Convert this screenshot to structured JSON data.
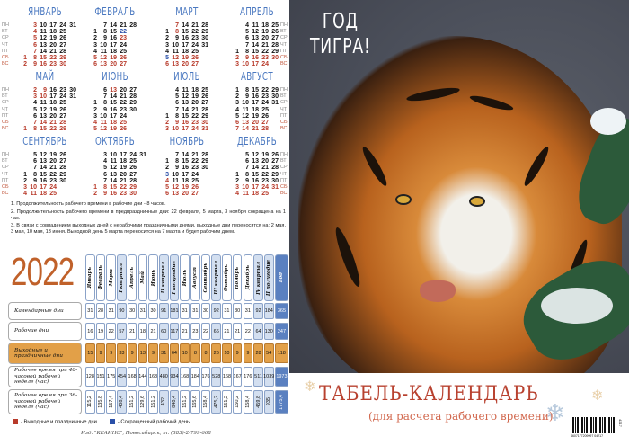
{
  "weekdays": [
    "ПН",
    "ВТ",
    "СР",
    "ЧТ",
    "ПТ",
    "СБ",
    "ВС"
  ],
  "months": [
    {
      "name": "ЯНВАРЬ",
      "rows": [
        [
          "",
          3,
          10,
          17,
          24,
          31
        ],
        [
          "",
          4,
          11,
          18,
          25,
          ""
        ],
        [
          "",
          5,
          12,
          19,
          26,
          ""
        ],
        [
          "",
          6,
          13,
          20,
          27,
          ""
        ],
        [
          "",
          7,
          14,
          21,
          28,
          ""
        ],
        [
          1,
          8,
          15,
          22,
          29,
          ""
        ],
        [
          2,
          9,
          16,
          23,
          30,
          ""
        ]
      ],
      "red": [
        1,
        2,
        3,
        4,
        5,
        6,
        7,
        8,
        9,
        15,
        16,
        22,
        23,
        29,
        30
      ],
      "short": []
    },
    {
      "name": "ФЕВРАЛЬ",
      "rows": [
        [
          "",
          7,
          14,
          21,
          28
        ],
        [
          1,
          8,
          15,
          22,
          ""
        ],
        [
          2,
          9,
          16,
          23,
          ""
        ],
        [
          3,
          10,
          17,
          24,
          ""
        ],
        [
          4,
          11,
          18,
          25,
          ""
        ],
        [
          5,
          12,
          19,
          26,
          ""
        ],
        [
          6,
          13,
          20,
          27,
          ""
        ]
      ],
      "red": [
        5,
        6,
        12,
        13,
        19,
        20,
        23,
        26,
        27
      ],
      "short": [
        22
      ]
    },
    {
      "name": "МАРТ",
      "rows": [
        [
          "",
          7,
          14,
          21,
          28
        ],
        [
          1,
          8,
          15,
          22,
          29
        ],
        [
          2,
          9,
          16,
          23,
          30
        ],
        [
          3,
          10,
          17,
          24,
          31
        ],
        [
          4,
          11,
          18,
          25,
          ""
        ],
        [
          5,
          12,
          19,
          26,
          ""
        ],
        [
          6,
          13,
          20,
          27,
          ""
        ]
      ],
      "red": [
        6,
        7,
        8,
        12,
        13,
        19,
        20,
        26,
        27
      ],
      "short": [
        5
      ]
    },
    {
      "name": "АПРЕЛЬ",
      "rows": [
        [
          "",
          4,
          11,
          18,
          25
        ],
        [
          "",
          5,
          12,
          19,
          26
        ],
        [
          "",
          6,
          13,
          20,
          27
        ],
        [
          "",
          7,
          14,
          21,
          28
        ],
        [
          1,
          8,
          15,
          22,
          29
        ],
        [
          2,
          9,
          16,
          23,
          30
        ],
        [
          3,
          10,
          17,
          24,
          ""
        ]
      ],
      "red": [
        2,
        3,
        9,
        10,
        16,
        17,
        23,
        24,
        30
      ],
      "short": []
    },
    {
      "name": "МАЙ",
      "rows": [
        [
          "",
          2,
          9,
          16,
          23,
          30
        ],
        [
          "",
          3,
          10,
          17,
          24,
          31
        ],
        [
          "",
          4,
          11,
          18,
          25,
          ""
        ],
        [
          "",
          5,
          12,
          19,
          26,
          ""
        ],
        [
          "",
          6,
          13,
          20,
          27,
          ""
        ],
        [
          "",
          7,
          14,
          21,
          28,
          ""
        ],
        [
          1,
          8,
          15,
          22,
          29,
          ""
        ]
      ],
      "red": [
        1,
        2,
        3,
        7,
        8,
        9,
        10,
        14,
        15,
        21,
        22,
        28,
        29
      ],
      "short": []
    },
    {
      "name": "ИЮНЬ",
      "rows": [
        [
          "",
          6,
          13,
          20,
          27
        ],
        [
          "",
          7,
          14,
          21,
          28
        ],
        [
          1,
          8,
          15,
          22,
          29
        ],
        [
          2,
          9,
          16,
          23,
          30
        ],
        [
          3,
          10,
          17,
          24,
          ""
        ],
        [
          4,
          11,
          18,
          25,
          ""
        ],
        [
          5,
          12,
          19,
          26,
          ""
        ]
      ],
      "red": [
        4,
        5,
        11,
        12,
        13,
        18,
        19,
        25,
        26
      ],
      "short": []
    },
    {
      "name": "ИЮЛЬ",
      "rows": [
        [
          "",
          4,
          11,
          18,
          25
        ],
        [
          "",
          5,
          12,
          19,
          26
        ],
        [
          "",
          6,
          13,
          20,
          27
        ],
        [
          "",
          7,
          14,
          21,
          28
        ],
        [
          1,
          8,
          15,
          22,
          29
        ],
        [
          2,
          9,
          16,
          23,
          30
        ],
        [
          3,
          10,
          17,
          24,
          31
        ]
      ],
      "red": [
        2,
        3,
        9,
        10,
        16,
        17,
        23,
        24,
        30,
        31
      ],
      "short": []
    },
    {
      "name": "АВГУСТ",
      "rows": [
        [
          1,
          8,
          15,
          22,
          29
        ],
        [
          2,
          9,
          16,
          23,
          30
        ],
        [
          3,
          10,
          17,
          24,
          31
        ],
        [
          4,
          11,
          18,
          25,
          ""
        ],
        [
          5,
          12,
          19,
          26,
          ""
        ],
        [
          6,
          13,
          20,
          27,
          ""
        ],
        [
          7,
          14,
          21,
          28,
          ""
        ]
      ],
      "red": [
        6,
        7,
        13,
        14,
        20,
        21,
        27,
        28
      ],
      "short": []
    },
    {
      "name": "СЕНТЯБРЬ",
      "rows": [
        [
          "",
          5,
          12,
          19,
          26
        ],
        [
          "",
          6,
          13,
          20,
          27
        ],
        [
          "",
          7,
          14,
          21,
          28
        ],
        [
          1,
          8,
          15,
          22,
          29
        ],
        [
          2,
          9,
          16,
          23,
          30
        ],
        [
          3,
          10,
          17,
          24,
          ""
        ],
        [
          4,
          11,
          18,
          25,
          ""
        ]
      ],
      "red": [
        3,
        4,
        10,
        11,
        17,
        18,
        24,
        25
      ],
      "short": []
    },
    {
      "name": "ОКТЯБРЬ",
      "rows": [
        [
          "",
          3,
          10,
          17,
          24,
          31
        ],
        [
          "",
          4,
          11,
          18,
          25,
          ""
        ],
        [
          "",
          5,
          12,
          19,
          26,
          ""
        ],
        [
          "",
          6,
          13,
          20,
          27,
          ""
        ],
        [
          "",
          7,
          14,
          21,
          28,
          ""
        ],
        [
          1,
          8,
          15,
          22,
          29,
          ""
        ],
        [
          2,
          9,
          16,
          23,
          30,
          ""
        ]
      ],
      "red": [
        1,
        2,
        8,
        9,
        15,
        16,
        22,
        23,
        29,
        30
      ],
      "short": []
    },
    {
      "name": "НОЯБРЬ",
      "rows": [
        [
          "",
          7,
          14,
          21,
          28
        ],
        [
          1,
          8,
          15,
          22,
          29
        ],
        [
          2,
          9,
          16,
          23,
          30
        ],
        [
          3,
          10,
          17,
          24,
          ""
        ],
        [
          4,
          11,
          18,
          25,
          ""
        ],
        [
          5,
          12,
          19,
          26,
          ""
        ],
        [
          6,
          13,
          20,
          27,
          ""
        ]
      ],
      "red": [
        4,
        5,
        6,
        12,
        13,
        19,
        20,
        26,
        27
      ],
      "short": [
        3
      ]
    },
    {
      "name": "ДЕКАБРЬ",
      "rows": [
        [
          "",
          5,
          12,
          19,
          26
        ],
        [
          "",
          6,
          13,
          20,
          27
        ],
        [
          "",
          7,
          14,
          21,
          28
        ],
        [
          1,
          8,
          15,
          22,
          29
        ],
        [
          2,
          9,
          16,
          23,
          30
        ],
        [
          3,
          10,
          17,
          24,
          31
        ],
        [
          4,
          11,
          18,
          25,
          ""
        ]
      ],
      "red": [
        3,
        4,
        10,
        11,
        17,
        18,
        24,
        25,
        31
      ],
      "short": []
    }
  ],
  "notes": [
    "1. Продолжительность рабочего времени в рабочие дни - 8 часов.",
    "2. Продолжительность рабочего времени в предпраздничные дни: 22 февраля, 5 марта, 3 ноября сокращена на 1 час.",
    "3. В связи с совпадением выходных дней с нерабочими праздничными днями, выходные дни переносятся на: 2 мая, 3 мая, 10 мая, 13 июня. Выходной день 5 марта переносится на 7 марта и будет рабочим днем."
  ],
  "table": {
    "year": "2022",
    "columns": [
      {
        "label": "Январь",
        "kind": "m"
      },
      {
        "label": "Февраль",
        "kind": "m"
      },
      {
        "label": "Март",
        "kind": "m"
      },
      {
        "label": "I квартал",
        "kind": "q"
      },
      {
        "label": "Апрель",
        "kind": "m"
      },
      {
        "label": "Май",
        "kind": "m"
      },
      {
        "label": "Июнь",
        "kind": "m"
      },
      {
        "label": "II квартал",
        "kind": "q"
      },
      {
        "label": "I полугодие",
        "kind": "q"
      },
      {
        "label": "Июль",
        "kind": "m"
      },
      {
        "label": "Август",
        "kind": "m"
      },
      {
        "label": "Сентябрь",
        "kind": "m"
      },
      {
        "label": "III квартал",
        "kind": "q"
      },
      {
        "label": "Октябрь",
        "kind": "m"
      },
      {
        "label": "Ноябрь",
        "kind": "m"
      },
      {
        "label": "Декабрь",
        "kind": "m"
      },
      {
        "label": "IV квартал",
        "kind": "q"
      },
      {
        "label": "II полугодие",
        "kind": "q"
      },
      {
        "label": "Год",
        "kind": "y"
      }
    ],
    "rows": [
      {
        "label": "Календарные дни",
        "values": [
          "31",
          "28",
          "31",
          "90",
          "30",
          "31",
          "30",
          "91",
          "181",
          "31",
          "31",
          "30",
          "92",
          "31",
          "30",
          "31",
          "92",
          "184",
          "365"
        ]
      },
      {
        "label": "Рабочие дни",
        "values": [
          "16",
          "19",
          "22",
          "57",
          "21",
          "18",
          "21",
          "60",
          "117",
          "21",
          "23",
          "22",
          "66",
          "21",
          "21",
          "22",
          "64",
          "130",
          "247"
        ]
      },
      {
        "label": "Выходные и праздничные дни",
        "values": [
          "15",
          "9",
          "9",
          "33",
          "9",
          "13",
          "9",
          "31",
          "64",
          "10",
          "8",
          "8",
          "26",
          "10",
          "9",
          "9",
          "28",
          "54",
          "118"
        ]
      },
      {
        "label": "Рабочее время при 40-часовой рабочей неделе (час)",
        "values": [
          "128",
          "151",
          "175",
          "454",
          "168",
          "144",
          "168",
          "480",
          "934",
          "168",
          "184",
          "176",
          "528",
          "168",
          "167",
          "176",
          "511",
          "1039",
          "1973"
        ]
      },
      {
        "label": "Рабочее время при 36-часовой рабочей неделе (час)",
        "values": [
          "115,2",
          "135,8",
          "157,4",
          "408,4",
          "151,2",
          "129,6",
          "151,2",
          "432",
          "840,4",
          "151,2",
          "165,6",
          "158,4",
          "475,2",
          "151,2",
          "150,2",
          "158,4",
          "459,8",
          "935",
          "1775,4"
        ]
      }
    ]
  },
  "legend": {
    "holidays": "- Выходные и праздничные дни",
    "short": "- Сокращенный рабочий день"
  },
  "footer": "Изд. \"КЕАИНС\", Новосибирск, т. (383)-2-799-668",
  "photo_title": [
    "ГОД",
    "ТИГРА!"
  ],
  "calendar_title": "ТАБЕЛЬ-КАЛЕНДАРЬ",
  "calendar_subtitle": "(для расчета рабочего времени)",
  "barcode": {
    "number": "4607177209997  04217",
    "side": "4217"
  },
  "colors": {
    "red": "#b83a2a",
    "short": "#2a4fa8",
    "month": "#4a78c0",
    "orange": "#e2a048",
    "year": "#c0612a"
  }
}
